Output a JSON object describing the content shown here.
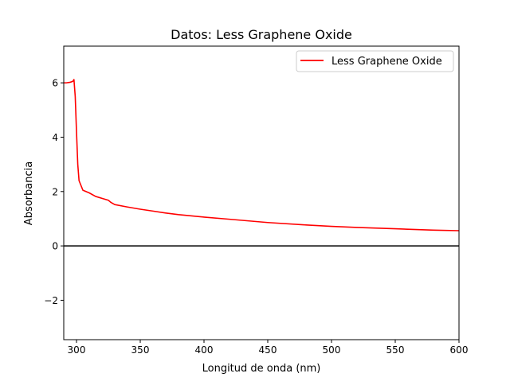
{
  "chart_data": {
    "type": "line",
    "title": "Datos: Less Graphene Oxide",
    "xlabel": "Longitud de onda (nm)",
    "ylabel": "Absorbancia",
    "xlim": [
      290,
      600
    ],
    "ylim": [
      -3.45,
      7.35
    ],
    "xticks": [
      300,
      350,
      400,
      450,
      500,
      550,
      600
    ],
    "xtick_labels": [
      "300",
      "350",
      "400",
      "450",
      "500",
      "550",
      "600"
    ],
    "yticks": [
      -2,
      0,
      2,
      4,
      6
    ],
    "ytick_labels": [
      "−2",
      "0",
      "2",
      "4",
      "6"
    ],
    "grid": false,
    "legend_position": "upper right",
    "zero_line": true,
    "series": [
      {
        "name": "Less Graphene Oxide",
        "color": "#ff0000",
        "x": [
          290,
          292,
          295,
          297,
          298,
          299,
          300,
          301,
          302,
          305,
          310,
          315,
          320,
          325,
          327,
          330,
          340,
          350,
          360,
          370,
          380,
          400,
          420,
          450,
          480,
          500,
          520,
          550,
          580,
          600
        ],
        "y": [
          6.0,
          6.0,
          6.02,
          6.05,
          6.12,
          5.5,
          4.2,
          3.0,
          2.4,
          2.05,
          1.95,
          1.82,
          1.75,
          1.68,
          1.6,
          1.52,
          1.43,
          1.35,
          1.28,
          1.21,
          1.15,
          1.06,
          0.98,
          0.86,
          0.77,
          0.72,
          0.68,
          0.63,
          0.58,
          0.56
        ]
      }
    ]
  }
}
